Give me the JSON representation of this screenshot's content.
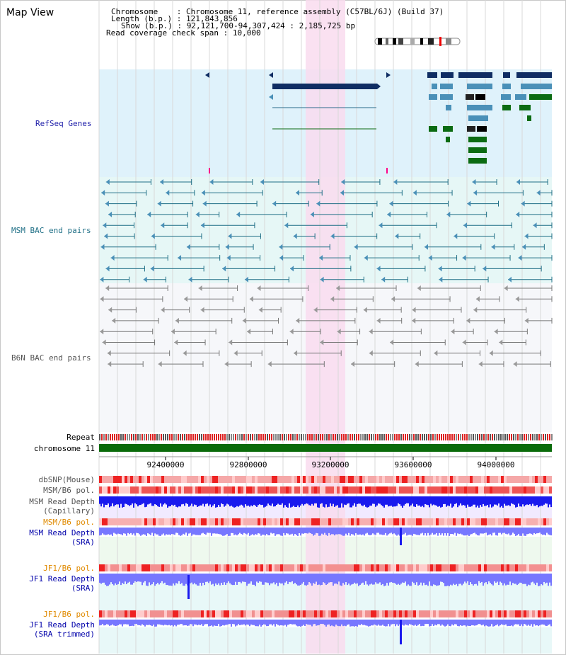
{
  "title": "Map View",
  "info": {
    "line1_key": "Chromosome",
    "line1_val": "Chromosome 11, reference assembly (C57BL/6J) (Build 37)",
    "line2_key": "Length (b.p.)",
    "line2_val": "121,843,856",
    "line3_key": "Show (b.p.)",
    "line3_val": "92,121,700-94,307,424 : 2,185,725 bp",
    "line4_key": "Read coverage check span",
    "line4_val": "10,000"
  },
  "tracks": {
    "refseq": "RefSeq Genes",
    "msm_bac": "MSM BAC end pairs",
    "b6n_bac": "B6N BAC end pairs",
    "repeat": "Repeat",
    "chromosome": "chromosome 11",
    "dbsnp": "dbSNP(Mouse)",
    "msm_b6_pol": "MSM/B6 pol.",
    "msm_depth_cap_1": "MSM Read Depth",
    "msm_depth_cap_2": "(Capillary)",
    "msm_b6_pol_2": "MSM/B6 pol.",
    "msm_depth_sra_1": "MSM Read Depth",
    "msm_depth_sra_2": "(SRA)",
    "jf1_b6_pol": "JF1/B6 pol.",
    "jf1_depth_sra_1": "JF1 Read Depth",
    "jf1_depth_sra_2": "(SRA)",
    "jf1_b6_pol_2": "JF1/B6 pol.",
    "jf1_depth_trim_1": "JF1 Read Depth",
    "jf1_depth_trim_2": "(SRA trimmed)"
  },
  "axis_ticks": [
    "92400000",
    "92800000",
    "93200000",
    "93600000",
    "94000000"
  ],
  "colors": {
    "refseq_bg": "#dff2fb",
    "msm_bg": "#e6f7f6",
    "b6n_bg": "#f6f7fa",
    "highlight": "#f9dcef",
    "gene_dark": "#0f2d63",
    "gene_mid": "#4a90b8",
    "gene_green": "#0b6b12",
    "chromosome_bar": "#0a6b0a",
    "depth_blue": "#1a1aee",
    "depth_light": "#7777ff"
  }
}
